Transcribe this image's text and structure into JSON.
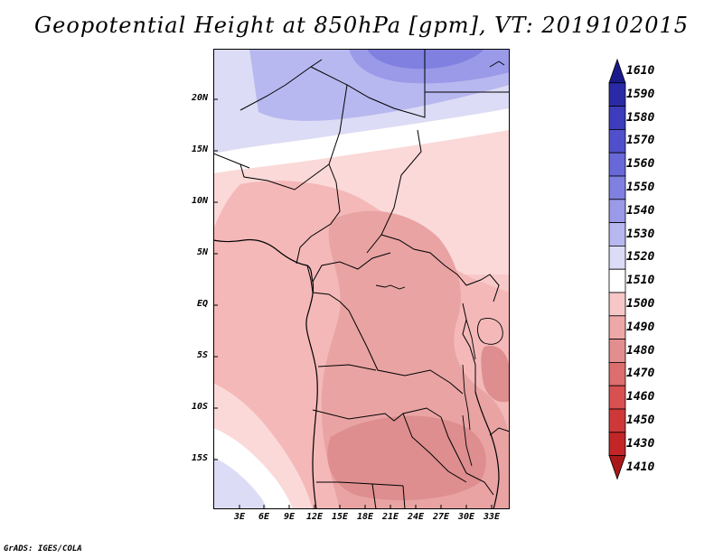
{
  "title": "Geopotential Height at 850hPa [gpm], VT: 2019102015",
  "latitude_ticks": [
    "20N",
    "15N",
    "10N",
    "5N",
    "EQ",
    "5S",
    "10S",
    "15S"
  ],
  "longitude_ticks": [
    "3E",
    "6E",
    "9E",
    "12E",
    "15E",
    "18E",
    "21E",
    "24E",
    "27E",
    "30E",
    "33E"
  ],
  "colorbar": {
    "levels": [
      "1610",
      "1590",
      "1580",
      "1570",
      "1560",
      "1550",
      "1540",
      "1530",
      "1520",
      "1510",
      "1500",
      "1490",
      "1480",
      "1470",
      "1460",
      "1450",
      "1430",
      "1410"
    ],
    "colors": [
      "#1a1a8c",
      "#2a2aa6",
      "#3c3cbc",
      "#5050cc",
      "#6868d8",
      "#8080e0",
      "#9a9ae8",
      "#b8b8f0",
      "#dcdcf6",
      "#ffffff",
      "#f7c7c7",
      "#eea8a8",
      "#e28e8e",
      "#dc6e6e",
      "#d85050",
      "#cf3838",
      "#c22626",
      "#a81818"
    ]
  },
  "footer": "GrADS: IGES/COLA"
}
